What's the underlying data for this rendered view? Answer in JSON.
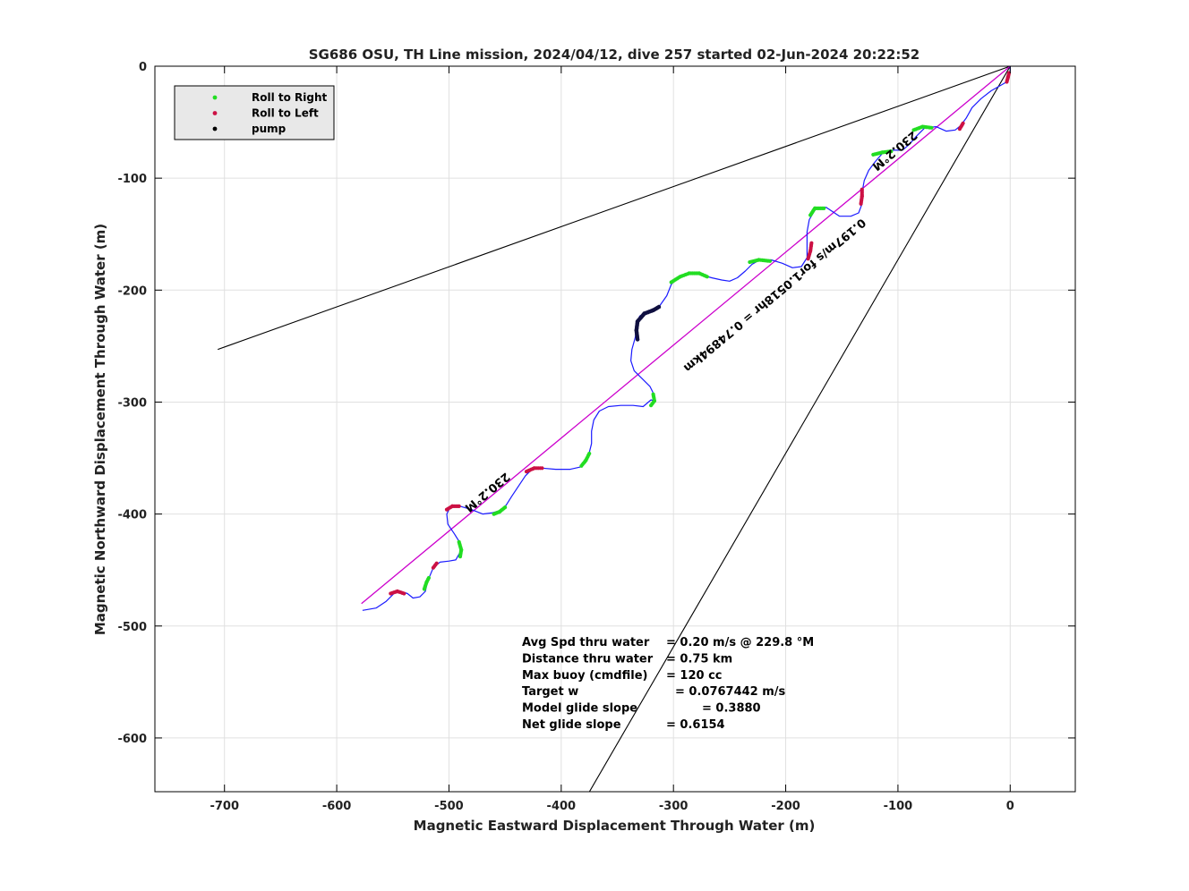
{
  "chart_data": {
    "type": "line",
    "title": "SG686 OSU, TH Line mission, 2024/04/12, dive 257 started 02-Jun-2024 20:22:52",
    "xlabel": "Magnetic Eastward Displacement Through Water (m)",
    "ylabel": "Magnetic Northward Displacement Through Water (m)",
    "xlim": [
      -762,
      58
    ],
    "ylim": [
      -648,
      0
    ],
    "xticks": [
      "-700",
      "-600",
      "-500",
      "-400",
      "-300",
      "-200",
      "-100",
      "0"
    ],
    "yticks": [
      "0",
      "-100",
      "-200",
      "-300",
      "-400",
      "-500",
      "-600"
    ],
    "grid": true,
    "legend_position": "top-left",
    "legend": [
      {
        "label": "Roll to Right",
        "color": "#22dd22"
      },
      {
        "label": "Roll to Left",
        "color": "#cc1144"
      },
      {
        "label": "pump",
        "color": "#000000"
      }
    ],
    "series": [
      {
        "color": "#1a1aff",
        "points": [
          [
            -577,
            -486
          ],
          [
            -565,
            -484
          ],
          [
            -556,
            -478
          ],
          [
            -549,
            -471
          ],
          [
            -543,
            -469
          ],
          [
            -537,
            -471
          ],
          [
            -532,
            -475
          ],
          [
            -526,
            -474
          ],
          [
            -521,
            -469
          ],
          [
            -519,
            -460
          ],
          [
            -514,
            -448
          ],
          [
            -508,
            -443
          ],
          [
            -500,
            -442
          ],
          [
            -494,
            -441
          ],
          [
            -490,
            -434
          ],
          [
            -490,
            -426
          ],
          [
            -495,
            -418
          ],
          [
            -501,
            -409
          ],
          [
            -502,
            -400
          ],
          [
            -499,
            -394
          ],
          [
            -490,
            -393
          ],
          [
            -480,
            -396
          ],
          [
            -470,
            -400
          ],
          [
            -462,
            -399
          ],
          [
            -455,
            -397
          ],
          [
            -449,
            -392
          ],
          [
            -444,
            -384
          ],
          [
            -438,
            -375
          ],
          [
            -432,
            -366
          ],
          [
            -426,
            -360
          ],
          [
            -417,
            -359
          ],
          [
            -405,
            -360
          ],
          [
            -392,
            -360
          ],
          [
            -383,
            -358
          ],
          [
            -378,
            -352
          ],
          [
            -375,
            -345
          ],
          [
            -373,
            -337
          ],
          [
            -373,
            -326
          ],
          [
            -371,
            -316
          ],
          [
            -366,
            -308
          ],
          [
            -358,
            -304
          ],
          [
            -347,
            -303
          ],
          [
            -336,
            -303
          ],
          [
            -327,
            -304
          ],
          [
            -320,
            -298
          ],
          [
            -317,
            -299
          ],
          [
            -317,
            -294
          ],
          [
            -321,
            -286
          ],
          [
            -328,
            -279
          ],
          [
            -335,
            -272
          ],
          [
            -338,
            -263
          ],
          [
            -337,
            -253
          ],
          [
            -334,
            -242
          ],
          [
            -333,
            -230
          ],
          [
            -330,
            -223
          ],
          [
            -322,
            -219
          ],
          [
            -313,
            -215
          ],
          [
            -306,
            -205
          ],
          [
            -302,
            -195
          ],
          [
            -296,
            -188
          ],
          [
            -287,
            -185
          ],
          [
            -276,
            -186
          ],
          [
            -266,
            -189
          ],
          [
            -257,
            -191
          ],
          [
            -250,
            -192
          ],
          [
            -243,
            -189
          ],
          [
            -236,
            -183
          ],
          [
            -230,
            -177
          ],
          [
            -223,
            -173
          ],
          [
            -213,
            -173
          ],
          [
            -203,
            -176
          ],
          [
            -194,
            -180
          ],
          [
            -186,
            -179
          ],
          [
            -181,
            -171
          ],
          [
            -181,
            -162
          ],
          [
            -181,
            -148
          ],
          [
            -179,
            -137
          ],
          [
            -173,
            -127
          ],
          [
            -164,
            -126
          ],
          [
            -158,
            -130
          ],
          [
            -152,
            -134
          ],
          [
            -142,
            -134
          ],
          [
            -135,
            -131
          ],
          [
            -132,
            -123
          ],
          [
            -132,
            -113
          ],
          [
            -130,
            -102
          ],
          [
            -126,
            -93
          ],
          [
            -120,
            -85
          ],
          [
            -114,
            -78
          ],
          [
            -105,
            -75
          ],
          [
            -96,
            -75
          ],
          [
            -90,
            -70
          ],
          [
            -84,
            -63
          ],
          [
            -76,
            -55
          ],
          [
            -66,
            -54
          ],
          [
            -57,
            -58
          ],
          [
            -49,
            -57
          ],
          [
            -44,
            -53
          ],
          [
            -39,
            -46
          ],
          [
            -34,
            -37
          ],
          [
            -26,
            -29
          ],
          [
            -17,
            -22
          ],
          [
            -10,
            -18
          ],
          [
            -3,
            -14
          ],
          [
            -1,
            -9
          ],
          [
            0,
            -4
          ],
          [
            0,
            0
          ]
        ]
      }
    ],
    "roll_right_segments": [
      [
        [
          -522,
          -467
        ],
        [
          -520,
          -461
        ],
        [
          -518,
          -457
        ]
      ],
      [
        [
          -490,
          -438
        ],
        [
          -489,
          -432
        ],
        [
          -491,
          -425
        ]
      ],
      [
        [
          -460,
          -400
        ],
        [
          -455,
          -398
        ],
        [
          -450,
          -394
        ]
      ],
      [
        [
          -382,
          -357
        ],
        [
          -378,
          -352
        ],
        [
          -375,
          -346
        ]
      ],
      [
        [
          -320,
          -303
        ],
        [
          -317,
          -299
        ],
        [
          -318,
          -293
        ]
      ],
      [
        [
          -302,
          -193
        ],
        [
          -294,
          -188
        ],
        [
          -286,
          -185
        ],
        [
          -277,
          -185
        ],
        [
          -270,
          -188
        ]
      ],
      [
        [
          -232,
          -175
        ],
        [
          -224,
          -173
        ],
        [
          -214,
          -174
        ]
      ],
      [
        [
          -178,
          -133
        ],
        [
          -174,
          -127
        ],
        [
          -166,
          -127
        ]
      ],
      [
        [
          -122,
          -79
        ],
        [
          -114,
          -77
        ],
        [
          -106,
          -76
        ]
      ],
      [
        [
          -86,
          -57
        ],
        [
          -78,
          -54
        ],
        [
          -70,
          -55
        ]
      ]
    ],
    "roll_left_segments": [
      [
        [
          -552,
          -471
        ],
        [
          -546,
          -469
        ],
        [
          -540,
          -471
        ]
      ],
      [
        [
          -514,
          -448
        ],
        [
          -511,
          -444
        ]
      ],
      [
        [
          -502,
          -396
        ],
        [
          -497,
          -393
        ],
        [
          -491,
          -393
        ]
      ],
      [
        [
          -431,
          -362
        ],
        [
          -424,
          -359
        ],
        [
          -417,
          -359
        ]
      ],
      [
        [
          -180,
          -172
        ],
        [
          -178,
          -165
        ],
        [
          -177,
          -158
        ]
      ],
      [
        [
          -133,
          -123
        ],
        [
          -132,
          -116
        ],
        [
          -132,
          -110
        ]
      ],
      [
        [
          -45,
          -56
        ],
        [
          -42,
          -51
        ]
      ],
      [
        [
          -3,
          -14
        ],
        [
          -2,
          -10
        ],
        [
          -1,
          -6
        ]
      ]
    ],
    "pump_segments": [
      [
        [
          -332,
          -244
        ],
        [
          -333,
          -236
        ],
        [
          -332,
          -228
        ],
        [
          -326,
          -221
        ],
        [
          -318,
          -218
        ],
        [
          -313,
          -215
        ]
      ]
    ],
    "reference_lines": [
      {
        "color": "#000000",
        "points": [
          [
            -706,
            -253
          ],
          [
            0,
            0
          ]
        ]
      },
      {
        "color": "#000000",
        "points": [
          [
            -376,
            -650
          ],
          [
            0,
            0
          ]
        ]
      },
      {
        "color": "#cc00cc",
        "points": [
          [
            -578,
            -480
          ],
          [
            0,
            0
          ]
        ]
      }
    ],
    "annotations": [
      {
        "text": "230.2°M",
        "x": -468,
        "y": -378,
        "angle": 140.2
      },
      {
        "text": "230.2°M",
        "x": -105,
        "y": -73,
        "angle": 140.2
      },
      {
        "text": "0.197m/s for1.0518hr = 0.74894km",
        "x": -212,
        "y": -202,
        "angle": 140.2
      }
    ],
    "stats": [
      {
        "label": "Avg Spd thru water",
        "value": "=  0.20 m/s @ 229.8 °M"
      },
      {
        "label": "Distance thru water",
        "value": "=  0.75 km"
      },
      {
        "label": "Max buoy (cmdfile)",
        "value": "= 120 cc"
      },
      {
        "label": "Target w",
        "value": "= 0.0767442 m/s"
      },
      {
        "label": "Model glide slope",
        "value": "= 0.3880"
      },
      {
        "label": "Net glide slope",
        "value": "= 0.6154"
      }
    ]
  }
}
